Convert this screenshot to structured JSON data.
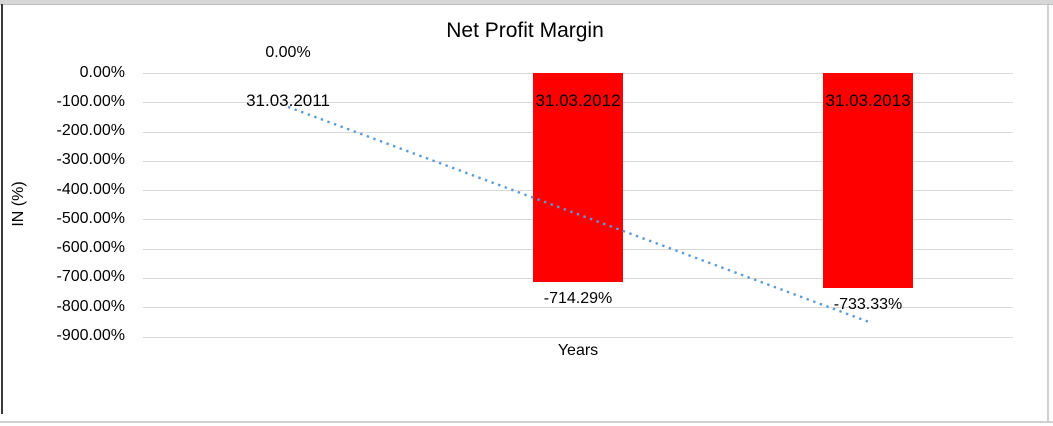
{
  "window": {
    "top_strip_color": "#d7d7d7",
    "left_border_color": "#3a3a3a",
    "light_border_color": "#d0d0d0",
    "background": "#ffffff"
  },
  "chart_data": {
    "type": "bar",
    "title": "Net Profit Margin",
    "xlabel": "Years",
    "ylabel": "IN (%)",
    "categories": [
      "31.03.2011",
      "31.03.2012",
      "31.03.2013"
    ],
    "values": [
      0,
      -714.29,
      -733.33
    ],
    "data_labels": [
      "0.00%",
      "-714.29%",
      "-733.33%"
    ],
    "ylim": [
      -900,
      0
    ],
    "ytick_step": 100,
    "ytick_labels": [
      "0.00%",
      "-100.00%",
      "-200.00%",
      "-300.00%",
      "-400.00%",
      "-500.00%",
      "-600.00%",
      "-700.00%",
      "-800.00%",
      "-900.00%"
    ],
    "grid": true,
    "legend": "none",
    "bar_color": "#ff0000",
    "gridline_color": "#d9d9d9",
    "text_color": "#000000",
    "trendline": {
      "type": "linear",
      "style": "dotted",
      "color": "#5b9bd5"
    }
  }
}
